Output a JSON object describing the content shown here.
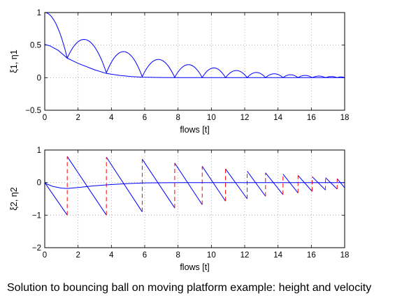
{
  "caption": "Solution to bouncing ball on moving platform example: height and velocity",
  "colors": {
    "series_blue": "#0000ff",
    "jump_red": "#ff0000",
    "grid": "#a0a0a0",
    "axis": "#000000"
  },
  "chart_data": [
    {
      "type": "line",
      "xlabel": "flows [t]",
      "ylabel": "ξ1, η1",
      "xlim": [
        0,
        18
      ],
      "ylim": [
        -0.5,
        1
      ],
      "xticks": [
        "0",
        "2",
        "4",
        "6",
        "8",
        "10",
        "12",
        "14",
        "16",
        "18"
      ],
      "yticks": [
        "−0.5",
        "0",
        "0.5",
        "1"
      ],
      "grid": true,
      "series": [
        {
          "color": "#0000ff",
          "style": "solid",
          "x": [
            0,
            1.35,
            3.7,
            5.85,
            7.8,
            9.45,
            10.85,
            12.15,
            13.25,
            14.3,
            15.2,
            16.05,
            16.85,
            17.55,
            18
          ],
          "y": [
            1.0,
            0.3,
            0.075,
            0.015,
            0.004,
            0.001,
            0.0,
            0.0,
            0.0,
            0.0,
            0.0,
            0.0,
            0.0,
            0.0,
            0.0
          ],
          "arch_peaks": [
            0.79,
            0.58,
            0.4,
            0.28,
            0.2,
            0.15,
            0.11,
            0.08,
            0.06,
            0.045,
            0.035,
            0.025,
            0.018,
            0.012
          ]
        },
        {
          "color": "#0000ff",
          "style": "solid",
          "x": [
            0,
            0.3,
            0.8,
            1.35,
            2.0,
            3.0,
            3.7,
            4.5,
            5.2,
            5.85,
            7.0,
            9.0,
            18
          ],
          "y": [
            0.51,
            0.49,
            0.42,
            0.3,
            0.22,
            0.12,
            0.065,
            0.035,
            0.018,
            0.008,
            0.002,
            0.0,
            0.0
          ]
        }
      ]
    },
    {
      "type": "line",
      "xlabel": "flows [t]",
      "ylabel": "ξ2, η2",
      "xlim": [
        0,
        18
      ],
      "ylim": [
        -2,
        1
      ],
      "xticks": [
        "0",
        "2",
        "4",
        "6",
        "8",
        "10",
        "12",
        "14",
        "16",
        "18"
      ],
      "yticks": [
        "−2",
        "−1",
        "0",
        "1"
      ],
      "grid": true,
      "series": [
        {
          "color": "#0000ff",
          "style": "solid",
          "x": [
            0,
            1.35,
            3.7,
            5.85,
            7.8,
            9.45,
            10.85,
            12.15,
            13.25,
            14.3,
            15.2,
            16.05,
            16.85,
            17.55,
            18
          ],
          "post_impact": [
            0.8,
            0.78,
            0.72,
            0.6,
            0.5,
            0.42,
            0.35,
            0.3,
            0.26,
            0.22,
            0.18,
            0.15,
            0.12,
            0.1
          ],
          "pre_impact": [
            -1.0,
            -1.0,
            -0.9,
            -0.78,
            -0.68,
            -0.57,
            -0.5,
            -0.42,
            -0.37,
            -0.32,
            -0.27,
            -0.23,
            -0.2,
            -0.16
          ]
        },
        {
          "color": "#0000ff",
          "style": "solid",
          "x": [
            0,
            0.15,
            0.5,
            1.0,
            1.35,
            2.0,
            3.0,
            4.0,
            5.0,
            6.0,
            8.0,
            18
          ],
          "y": [
            0.0,
            -0.05,
            -0.12,
            -0.17,
            -0.18,
            -0.15,
            -0.1,
            -0.06,
            -0.03,
            -0.01,
            0.0,
            0.0
          ]
        },
        {
          "color": "#ff0000",
          "style": "dashed",
          "name": ""
        }
      ]
    }
  ]
}
